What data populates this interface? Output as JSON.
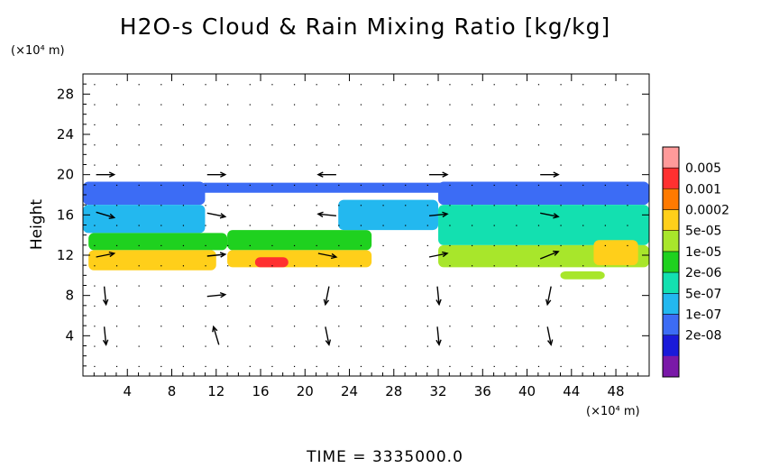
{
  "chart_data": {
    "type": "heatmap",
    "title": "H2O-s Cloud & Rain Mixing Ratio [kg/kg]",
    "ylabel": "Height",
    "y_unit": "(×10⁴ m)",
    "x_unit": "(×10⁴ m)",
    "xlim": [
      0,
      51
    ],
    "ylim": [
      0,
      30
    ],
    "x_ticks": [
      4,
      8,
      12,
      16,
      20,
      24,
      28,
      32,
      36,
      40,
      44,
      48
    ],
    "y_ticks": [
      4,
      8,
      12,
      16,
      20,
      24,
      28
    ],
    "colorbar": {
      "labels": [
        "0.005",
        "0.001",
        "0.0002",
        "5e-05",
        "1e-05",
        "2e-06",
        "5e-07",
        "1e-07",
        "2e-08"
      ],
      "colors": [
        "#ff9a9a",
        "#ff3030",
        "#ff7a00",
        "#ffcf1a",
        "#a8e62b",
        "#1fd11f",
        "#13e0b0",
        "#23b8ef",
        "#3c6cf5",
        "#1a1ad9",
        "#7a19a8"
      ]
    },
    "cloud_regions": [
      {
        "x": [
          0,
          11
        ],
        "y": [
          17,
          19.3
        ],
        "level": 8
      },
      {
        "x": [
          0,
          11
        ],
        "y": [
          14.2,
          17
        ],
        "level": 7
      },
      {
        "x": [
          0.5,
          13
        ],
        "y": [
          12.5,
          14.2
        ],
        "level": 5
      },
      {
        "x": [
          0.5,
          12
        ],
        "y": [
          10.5,
          12.5
        ],
        "level": 3
      },
      {
        "x": [
          13,
          26
        ],
        "y": [
          12.5,
          14.5
        ],
        "level": 5
      },
      {
        "x": [
          13,
          26
        ],
        "y": [
          10.8,
          12.5
        ],
        "level": 3
      },
      {
        "x": [
          15.5,
          18.5
        ],
        "y": [
          10.8,
          11.8
        ],
        "level": 1
      },
      {
        "x": [
          10.5,
          33
        ],
        "y": [
          18.2,
          19.2
        ],
        "level": 8
      },
      {
        "x": [
          23,
          32
        ],
        "y": [
          14.5,
          17.5
        ],
        "level": 7
      },
      {
        "x": [
          32,
          51
        ],
        "y": [
          17,
          19.3
        ],
        "level": 8
      },
      {
        "x": [
          32,
          51
        ],
        "y": [
          13,
          17
        ],
        "level": 6
      },
      {
        "x": [
          32,
          51
        ],
        "y": [
          10.8,
          13
        ],
        "level": 4
      },
      {
        "x": [
          46,
          50
        ],
        "y": [
          11,
          13.5
        ],
        "level": 3
      },
      {
        "x": [
          43,
          47
        ],
        "y": [
          9.6,
          10.4
        ],
        "level": 4
      }
    ],
    "wind_vectors": [
      {
        "x": 2,
        "y": 20,
        "u": 1,
        "v": 0
      },
      {
        "x": 12,
        "y": 20,
        "u": 1,
        "v": 0
      },
      {
        "x": 22,
        "y": 20,
        "u": -1,
        "v": 0
      },
      {
        "x": 32,
        "y": 20,
        "u": 1,
        "v": 0
      },
      {
        "x": 42,
        "y": 20,
        "u": 1,
        "v": 0
      },
      {
        "x": 2,
        "y": 16,
        "u": 1,
        "v": -0.3
      },
      {
        "x": 12,
        "y": 16,
        "u": 1,
        "v": -0.2
      },
      {
        "x": 22,
        "y": 16,
        "u": -1,
        "v": 0.1
      },
      {
        "x": 32,
        "y": 16,
        "u": 1,
        "v": 0.1
      },
      {
        "x": 42,
        "y": 16,
        "u": 1,
        "v": -0.2
      },
      {
        "x": 2,
        "y": 12,
        "u": 1,
        "v": 0.2
      },
      {
        "x": 12,
        "y": 12,
        "u": 1,
        "v": 0.1
      },
      {
        "x": 22,
        "y": 12,
        "u": 1,
        "v": -0.2
      },
      {
        "x": 32,
        "y": 12,
        "u": 1,
        "v": 0.2
      },
      {
        "x": 42,
        "y": 12,
        "u": 1,
        "v": 0.4
      },
      {
        "x": 2,
        "y": 8,
        "u": 0.1,
        "v": -1
      },
      {
        "x": 12,
        "y": 8,
        "u": 1,
        "v": 0.1
      },
      {
        "x": 22,
        "y": 8,
        "u": -0.2,
        "v": -1
      },
      {
        "x": 32,
        "y": 8,
        "u": 0.1,
        "v": -1
      },
      {
        "x": 42,
        "y": 8,
        "u": -0.2,
        "v": -1
      },
      {
        "x": 2,
        "y": 4,
        "u": 0.1,
        "v": -1
      },
      {
        "x": 12,
        "y": 4,
        "u": -0.3,
        "v": 1
      },
      {
        "x": 22,
        "y": 4,
        "u": 0.2,
        "v": -1
      },
      {
        "x": 32,
        "y": 4,
        "u": 0.1,
        "v": -1
      },
      {
        "x": 42,
        "y": 4,
        "u": 0.2,
        "v": -1
      }
    ],
    "grid": false
  },
  "footer": {
    "time_label": "TIME  =  3335000.0"
  }
}
